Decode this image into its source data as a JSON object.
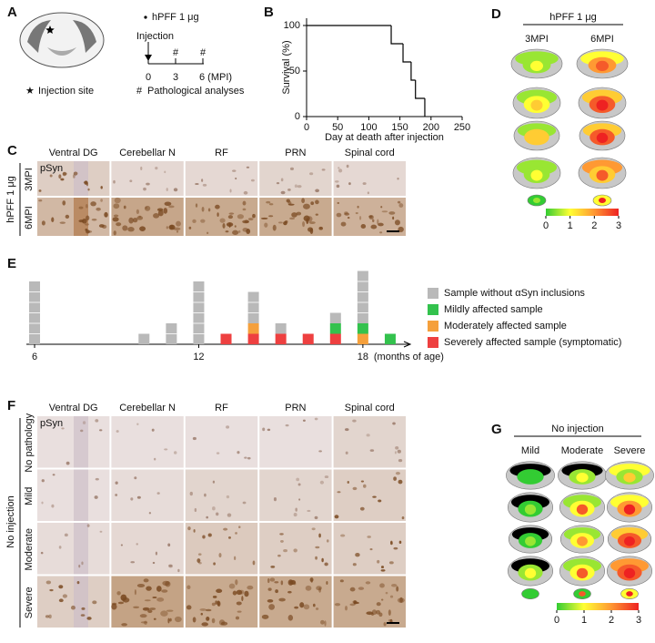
{
  "panel_labels": [
    "A",
    "B",
    "C",
    "D",
    "E",
    "F",
    "G"
  ],
  "panel_a": {
    "treatment": "hPFF 1 μg",
    "injection": "Injection",
    "timeline": [
      "0",
      "3",
      "6 (MPI)"
    ],
    "analysis_marks": [
      "#",
      "#"
    ],
    "legend": [
      {
        "symbol": "★",
        "text": "Injection site"
      },
      {
        "symbol": "#",
        "text": "Pathological analyses"
      }
    ]
  },
  "chart_data": [
    {
      "type": "line",
      "step": true,
      "x": [
        0,
        136,
        155,
        168,
        175,
        190
      ],
      "values": [
        100,
        80,
        60,
        40,
        20,
        0
      ],
      "xlabel": "Day at death after injection",
      "ylabel": "Survival (%)",
      "xlim": [
        0,
        250
      ],
      "ylim": [
        0,
        108
      ],
      "xticks": [
        0,
        50,
        100,
        150,
        200,
        250
      ],
      "yticks": [
        0,
        50,
        100
      ],
      "color": "#000000"
    },
    {
      "type": "bar",
      "stacked": true,
      "x": [
        6,
        7,
        8,
        9,
        10,
        11,
        12,
        13,
        14,
        15,
        16,
        17,
        18,
        19
      ],
      "series": [
        {
          "name": "Sample without αSyn inclusions",
          "color": "#b9b9b9",
          "values": [
            6,
            0,
            0,
            0,
            1,
            2,
            6,
            0,
            3,
            1,
            0,
            1,
            5,
            0
          ]
        },
        {
          "name": "Mildly affected sample",
          "color": "#33c24d",
          "values": [
            0,
            0,
            0,
            0,
            0,
            0,
            0,
            0,
            0,
            0,
            0,
            1,
            1,
            1
          ]
        },
        {
          "name": "Moderately affected sample",
          "color": "#f5a03c",
          "values": [
            0,
            0,
            0,
            0,
            0,
            0,
            0,
            0,
            1,
            0,
            0,
            0,
            1,
            0
          ]
        },
        {
          "name": "Severely affected sample (symptomatic)",
          "color": "#ee4040",
          "values": [
            0,
            0,
            0,
            0,
            0,
            0,
            0,
            1,
            1,
            1,
            1,
            1,
            0,
            0
          ]
        }
      ],
      "xlim": [
        5.7,
        19.7
      ],
      "xticks": [
        6,
        12,
        18
      ],
      "xlabel": "(months of age)"
    }
  ],
  "panel_c": {
    "stain": "pSyn",
    "columns": [
      "Ventral DG",
      "Cerebellar N",
      "RF",
      "PRN",
      "Spinal cord"
    ],
    "group": "hPFF 1 μg",
    "rows": [
      "3MPI",
      "6MPI"
    ]
  },
  "panel_d": {
    "title": "hPFF 1 μg",
    "columns": [
      "3MPI",
      "6MPI"
    ],
    "colorbar_ticks": [
      0,
      1,
      2,
      3
    ]
  },
  "panel_f": {
    "stain": "pSyn",
    "columns": [
      "Ventral DG",
      "Cerebellar N",
      "RF",
      "PRN",
      "Spinal cord"
    ],
    "group": "No injection",
    "rows": [
      "No pathology",
      "Mild",
      "Moderate",
      "Severe"
    ]
  },
  "panel_g": {
    "title": "No injection",
    "columns": [
      "Mild",
      "Moderate",
      "Severe"
    ],
    "colorbar_ticks": [
      0,
      1,
      2,
      3
    ]
  }
}
